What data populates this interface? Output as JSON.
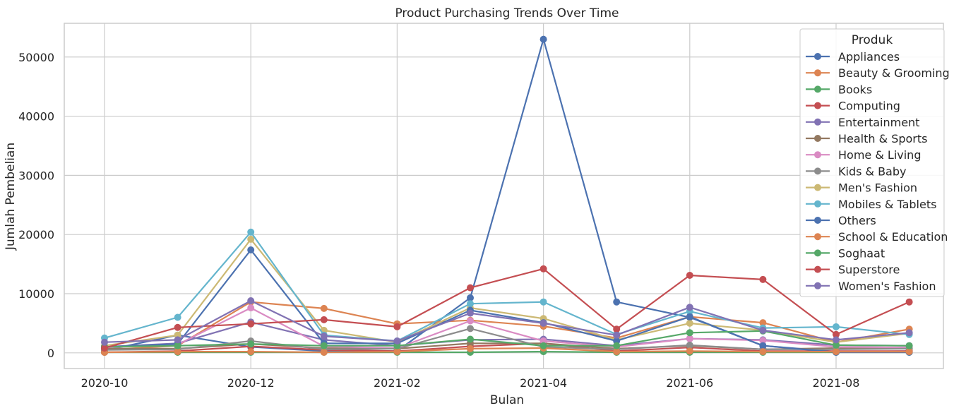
{
  "chart_data": {
    "type": "line",
    "title": "Product Purchasing Trends Over Time",
    "xlabel": "Bulan",
    "ylabel": "Jumlah Pembelian",
    "x": [
      "2020-10",
      "2020-11",
      "2020-12",
      "2021-01",
      "2021-02",
      "2021-03",
      "2021-04",
      "2021-05",
      "2021-06",
      "2021-07",
      "2021-08",
      "2021-09"
    ],
    "x_tick_labels": [
      "2020-10",
      "2020-12",
      "2021-02",
      "2021-04",
      "2021-06",
      "2021-08"
    ],
    "y_ticks": [
      0,
      10000,
      20000,
      30000,
      40000,
      50000
    ],
    "ylim": [
      -2650,
      55700
    ],
    "grid": true,
    "legend": {
      "title": "Produk",
      "placement": "upper-right"
    },
    "series": [
      {
        "name": "Appliances",
        "color": "#4c72b0",
        "values": [
          400,
          3000,
          1000,
          300,
          300,
          9300,
          53000,
          8600,
          6000,
          1200,
          200,
          300
        ]
      },
      {
        "name": "Beauty & Grooming",
        "color": "#dd8452",
        "values": [
          500,
          1200,
          8600,
          7500,
          4900,
          5500,
          4500,
          2500,
          6100,
          5100,
          1800,
          4000
        ]
      },
      {
        "name": "Books",
        "color": "#55a868",
        "values": [
          100,
          100,
          100,
          100,
          100,
          100,
          200,
          100,
          100,
          100,
          100,
          100
        ]
      },
      {
        "name": "Computing",
        "color": "#c44e52",
        "values": [
          100,
          300,
          1100,
          500,
          300,
          1100,
          1600,
          300,
          900,
          300,
          300,
          300
        ]
      },
      {
        "name": "Entertainment",
        "color": "#8172b3",
        "values": [
          1000,
          1600,
          5200,
          2200,
          1200,
          2200,
          2300,
          1200,
          2400,
          2200,
          1300,
          1200
        ]
      },
      {
        "name": "Health & Sports",
        "color": "#937860",
        "values": [
          700,
          700,
          1500,
          800,
          700,
          1600,
          1600,
          700,
          1200,
          600,
          800,
          800
        ]
      },
      {
        "name": "Home & Living",
        "color": "#da8bc3",
        "values": [
          900,
          1400,
          7600,
          1100,
          800,
          5400,
          2000,
          1000,
          2400,
          2100,
          1000,
          900
        ]
      },
      {
        "name": "Kids & Baby",
        "color": "#8c8c8c",
        "values": [
          500,
          600,
          2000,
          600,
          700,
          4100,
          1000,
          600,
          1300,
          600,
          600,
          700
        ]
      },
      {
        "name": "Men's Fashion",
        "color": "#ccb974",
        "values": [
          1200,
          3000,
          19200,
          3800,
          1800,
          7600,
          5800,
          2200,
          5000,
          3800,
          1800,
          3300
        ]
      },
      {
        "name": "Mobiles & Tablets",
        "color": "#64b5cd",
        "values": [
          2500,
          6000,
          20400,
          3000,
          2000,
          8300,
          8600,
          3100,
          7000,
          4200,
          4400,
          3100
        ]
      },
      {
        "name": "Others",
        "color": "#4c72b0",
        "values": [
          1000,
          1500,
          17400,
          1600,
          1600,
          7200,
          5100,
          2000,
          6100,
          1200,
          100,
          100
        ]
      },
      {
        "name": "School & Education",
        "color": "#dd8452",
        "values": [
          100,
          200,
          200,
          100,
          200,
          700,
          800,
          200,
          300,
          200,
          200,
          200
        ]
      },
      {
        "name": "Soghaat",
        "color": "#55a868",
        "values": [
          1000,
          1200,
          1500,
          1200,
          1200,
          2300,
          1200,
          1200,
          3400,
          3700,
          1300,
          1200
        ]
      },
      {
        "name": "Superstore",
        "color": "#c44e52",
        "values": [
          800,
          4300,
          4900,
          5600,
          4400,
          11000,
          14200,
          4000,
          13100,
          12400,
          3100,
          8600
        ]
      },
      {
        "name": "Women's Fashion",
        "color": "#8172b3",
        "values": [
          1800,
          2200,
          8800,
          2800,
          2000,
          6700,
          5000,
          3000,
          7700,
          3800,
          2200,
          3400
        ]
      }
    ]
  }
}
